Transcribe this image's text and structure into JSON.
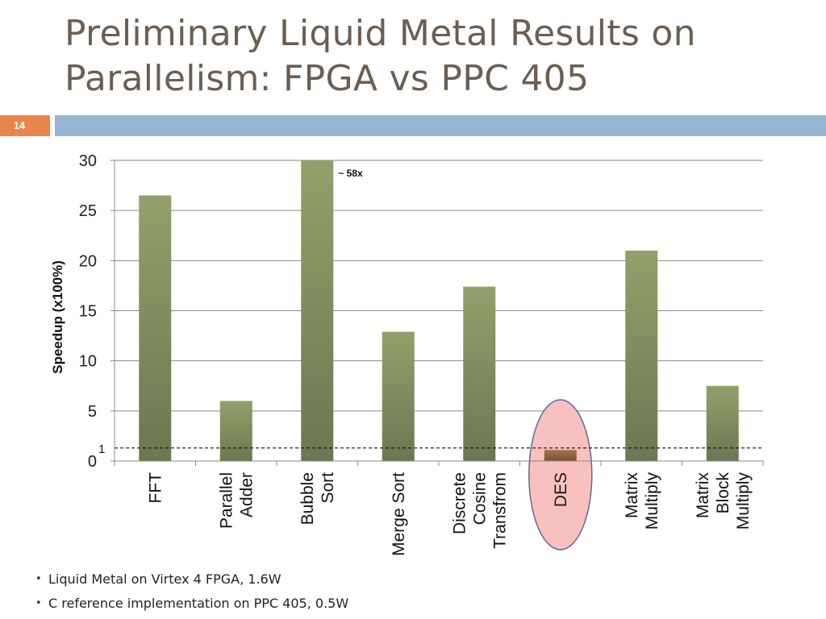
{
  "slide": {
    "title_line1": "Preliminary Liquid Metal Results on",
    "title_line2": "Parallelism: FPGA vs PPC 405",
    "number": "14",
    "accent_color": "#e9844e",
    "banner_color": "#98b5d1"
  },
  "chart_data": {
    "type": "bar",
    "categories": [
      "FFT",
      "Parallel Adder",
      "Bubble Sort",
      "Merge Sort",
      "Discrete Cosine Transfrom",
      "DES",
      "Matrix Multiply",
      "Matrix Block Multiply"
    ],
    "category_lines": [
      [
        "FFT"
      ],
      [
        "Parallel",
        "Adder"
      ],
      [
        "Bubble",
        "Sort"
      ],
      [
        "Merge Sort"
      ],
      [
        "Discrete",
        "Cosine",
        "Transfrom"
      ],
      [
        "DES"
      ],
      [
        "Matrix",
        "Multiply"
      ],
      [
        "Matrix",
        "Block",
        "Multiply"
      ]
    ],
    "values": [
      26.5,
      6,
      30,
      12.9,
      17.4,
      1.1,
      21,
      7.5
    ],
    "ylabel": "Speedup  (x100%)",
    "ylim": [
      0,
      30
    ],
    "yticks": [
      "0",
      "5",
      "10",
      "15",
      "20",
      "25",
      "30"
    ],
    "grid": true,
    "reference_line": {
      "value": 1.3,
      "label": "1",
      "style": "dashed"
    },
    "annotations": [
      {
        "category": "Bubble Sort",
        "text": "~ 58x"
      }
    ],
    "highlight": {
      "category": "DES",
      "shape": "ellipse",
      "fill": "#f9c0c0",
      "stroke": "#5c6c90"
    },
    "bar_colors": {
      "top": "#93a06b",
      "bottom": "#6c7750",
      "highlight_top": "#a8704a",
      "highlight_bottom": "#7e5234"
    }
  },
  "bullets": [
    "Liquid Metal on Virtex 4 FPGA, 1.6W",
    "C reference implementation on PPC 405, 0.5W"
  ]
}
